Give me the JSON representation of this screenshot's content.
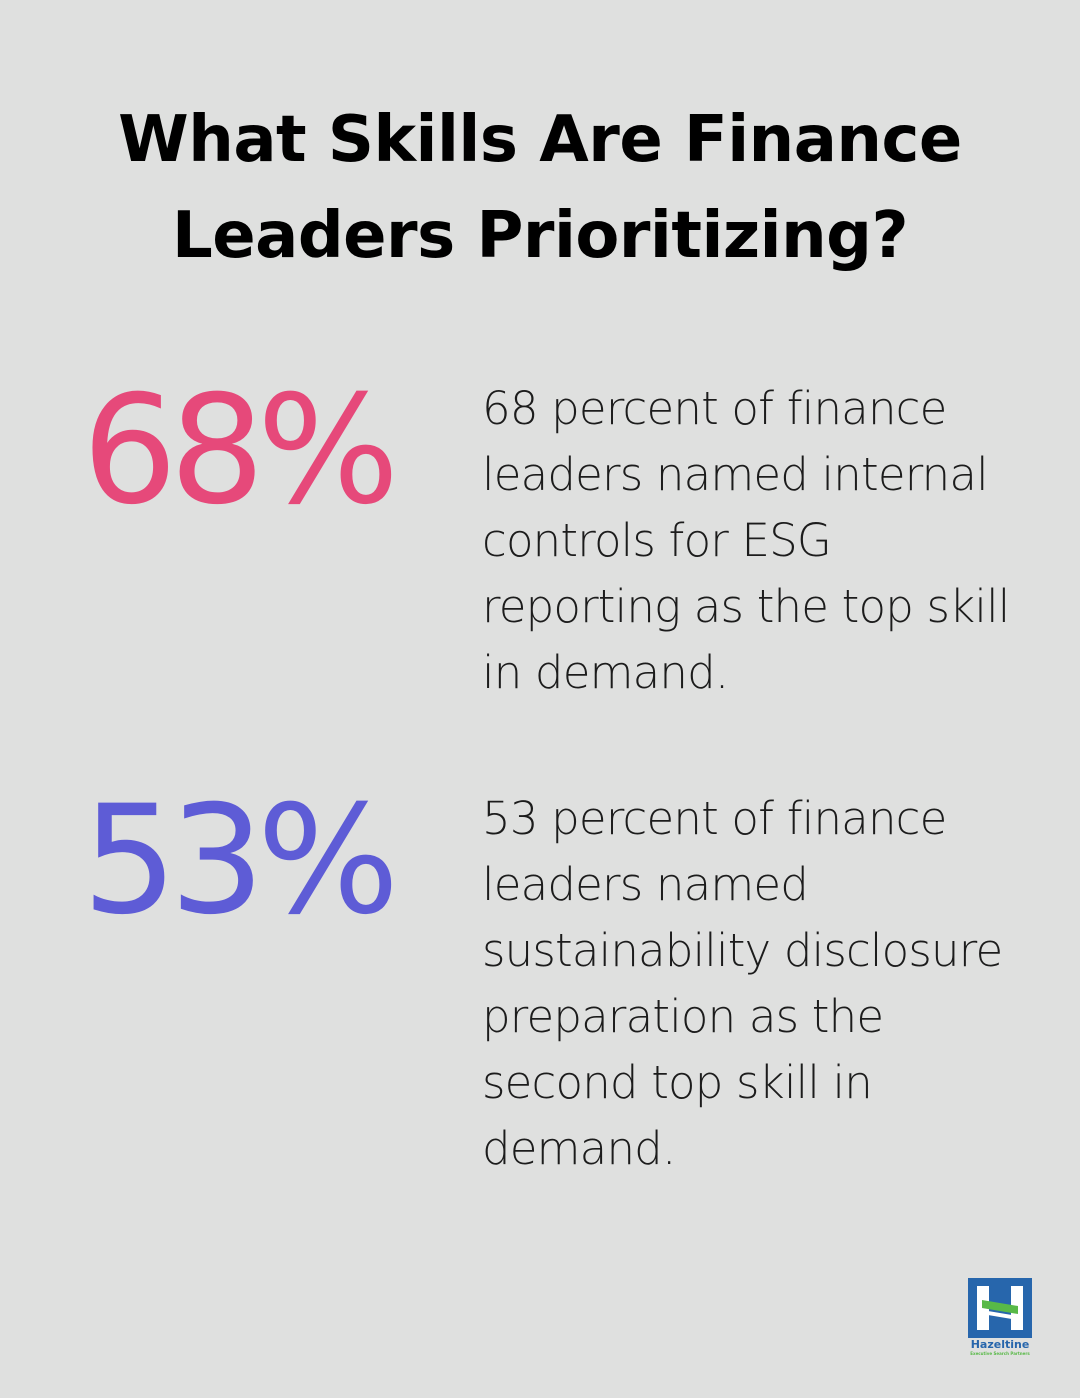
{
  "colors": {
    "background": "#dfe0df",
    "title": "#000000",
    "stat1": "#e6497a",
    "stat2": "#5e5cd6",
    "body_text": "#1c1c1c",
    "logo_blue": "#2766ac",
    "logo_green": "#58b947"
  },
  "title": "What Skills Are Finance Leaders Prioritizing?",
  "stats": [
    {
      "value": "68%",
      "description": "68 percent of finance leaders named internal controls for ESG reporting as the top skill in demand."
    },
    {
      "value": "53%",
      "description": "53 percent of finance leaders named sustainability disclosure preparation as the second top skill in demand."
    }
  ],
  "logo": {
    "icon": "hazeltine-logo-icon",
    "name": "Hazeltine",
    "tagline": "Executive Search Partners"
  }
}
